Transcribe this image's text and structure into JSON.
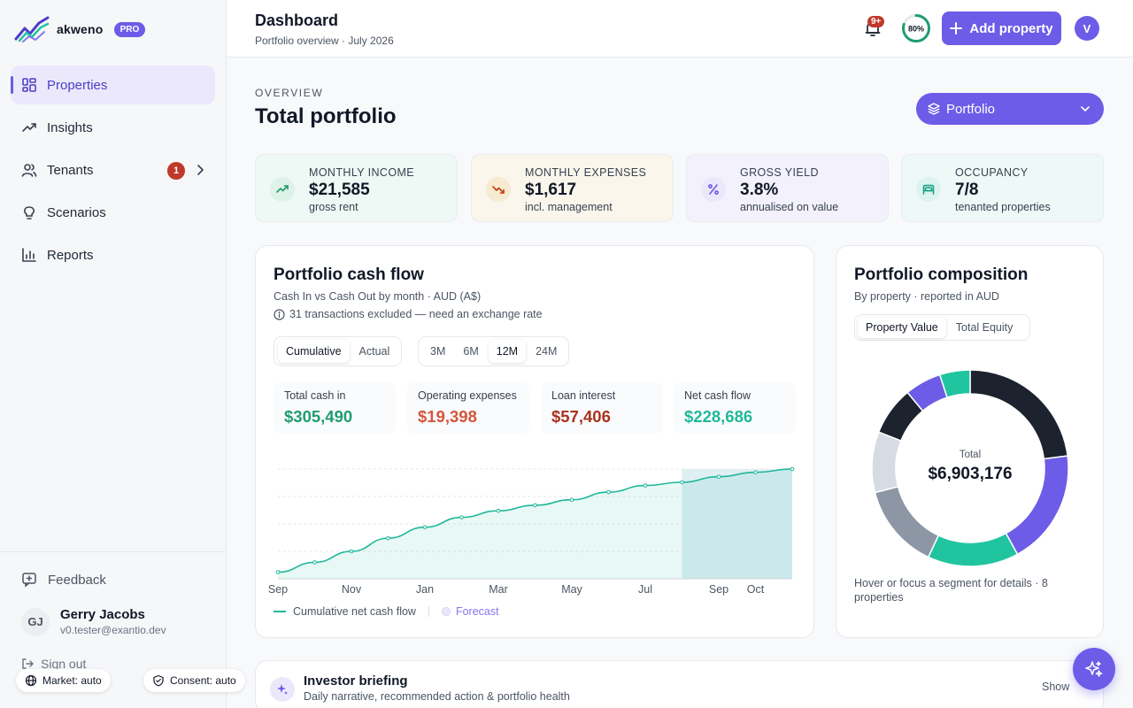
{
  "brand": {
    "name": "akweno",
    "badge": "PRO"
  },
  "colors": {
    "accent": "#6c5ce7",
    "positive": "#1f9d6e",
    "negative_light": "#d4553a",
    "negative_dark": "#a8321f",
    "net": "#20b89a"
  },
  "nav": [
    {
      "label": "Properties",
      "icon": "grid-icon",
      "active": true
    },
    {
      "label": "Insights",
      "icon": "trend-up-icon"
    },
    {
      "label": "Tenants",
      "icon": "users-icon",
      "badge": "1"
    },
    {
      "label": "Scenarios",
      "icon": "lightbulb-icon"
    },
    {
      "label": "Reports",
      "icon": "bar-chart-icon"
    }
  ],
  "sidebar_footer": {
    "feedback": "Feedback",
    "user": {
      "initials": "GJ",
      "name": "Gerry Jacobs",
      "email": "v0.tester@exantio.dev"
    },
    "signout": "Sign out"
  },
  "pills": {
    "market": "Market: auto",
    "consent": "Consent: auto"
  },
  "header": {
    "title": "Dashboard",
    "subtitle": "Portfolio overview · July 2026",
    "notif_badge": "9+",
    "progress_label": "80%",
    "progress_value": 0.8,
    "add_button": "Add property",
    "avatar": "V"
  },
  "overview": {
    "eyebrow": "OVERVIEW",
    "title": "Total portfolio",
    "selector": "Portfolio"
  },
  "kpis": [
    {
      "label": "MONTHLY INCOME",
      "value": "$21,585",
      "sub": "gross rent"
    },
    {
      "label": "MONTHLY EXPENSES",
      "value": "$1,617",
      "sub": "incl. management"
    },
    {
      "label": "GROSS YIELD",
      "value": "3.8%",
      "sub": "annualised on value"
    },
    {
      "label": "OCCUPANCY",
      "value": "7/8",
      "sub": "tenanted properties"
    }
  ],
  "cashflow": {
    "title": "Portfolio cash flow",
    "subtitle": "Cash In vs Cash Out by month · AUD (A$)",
    "note": "31 transactions excluded — need an exchange rate",
    "modes": [
      "Cumulative",
      "Actual"
    ],
    "ranges": [
      "3M",
      "6M",
      "12M",
      "24M"
    ],
    "stats": [
      {
        "label": "Total cash in",
        "value": "$305,490"
      },
      {
        "label": "Operating expenses",
        "value": "$19,398"
      },
      {
        "label": "Loan interest",
        "value": "$57,406"
      },
      {
        "label": "Net cash flow",
        "value": "$228,686"
      }
    ],
    "legend": {
      "line": "Cumulative net cash flow",
      "forecast": "Forecast"
    }
  },
  "chart_data": {
    "type": "area",
    "series": [
      {
        "name": "Cumulative net cash flow",
        "values": [
          0.06,
          0.15,
          0.25,
          0.37,
          0.47,
          0.56,
          0.62,
          0.67,
          0.72,
          0.79,
          0.85,
          0.88,
          0.93,
          0.97,
          1.0
        ]
      }
    ],
    "x_tick_labels": [
      "Sep",
      "Nov",
      "Jan",
      "Mar",
      "May",
      "Jul",
      "Sep",
      "Oct"
    ],
    "x_tick_positions": [
      0,
      2,
      4,
      6,
      8,
      10,
      12,
      13
    ],
    "forecast_start_index": 11,
    "y_scale": "relative, unlabeled",
    "grid": "horizontal dashed"
  },
  "composition": {
    "title": "Portfolio composition",
    "subtitle": "By property · reported in AUD",
    "tabs": [
      "Property Value",
      "Total Equity"
    ],
    "center_label": "Total",
    "center_value": "$6,903,176",
    "footer": "Hover or focus a segment for details · 8 properties",
    "segments": [
      {
        "share": 0.23,
        "color": "#1c222e"
      },
      {
        "share": 0.19,
        "color": "#6c5ce7"
      },
      {
        "share": 0.15,
        "color": "#20c5a0"
      },
      {
        "share": 0.14,
        "color": "#8d96a5"
      },
      {
        "share": 0.1,
        "color": "#d7dbe3"
      },
      {
        "share": 0.08,
        "color": "#1c222e"
      },
      {
        "share": 0.06,
        "color": "#6c5ce7"
      },
      {
        "share": 0.05,
        "color": "#20c5a0"
      }
    ]
  },
  "briefing": {
    "title": "Investor briefing",
    "subtitle": "Daily narrative, recommended action & portfolio health",
    "toggle": "Show"
  }
}
